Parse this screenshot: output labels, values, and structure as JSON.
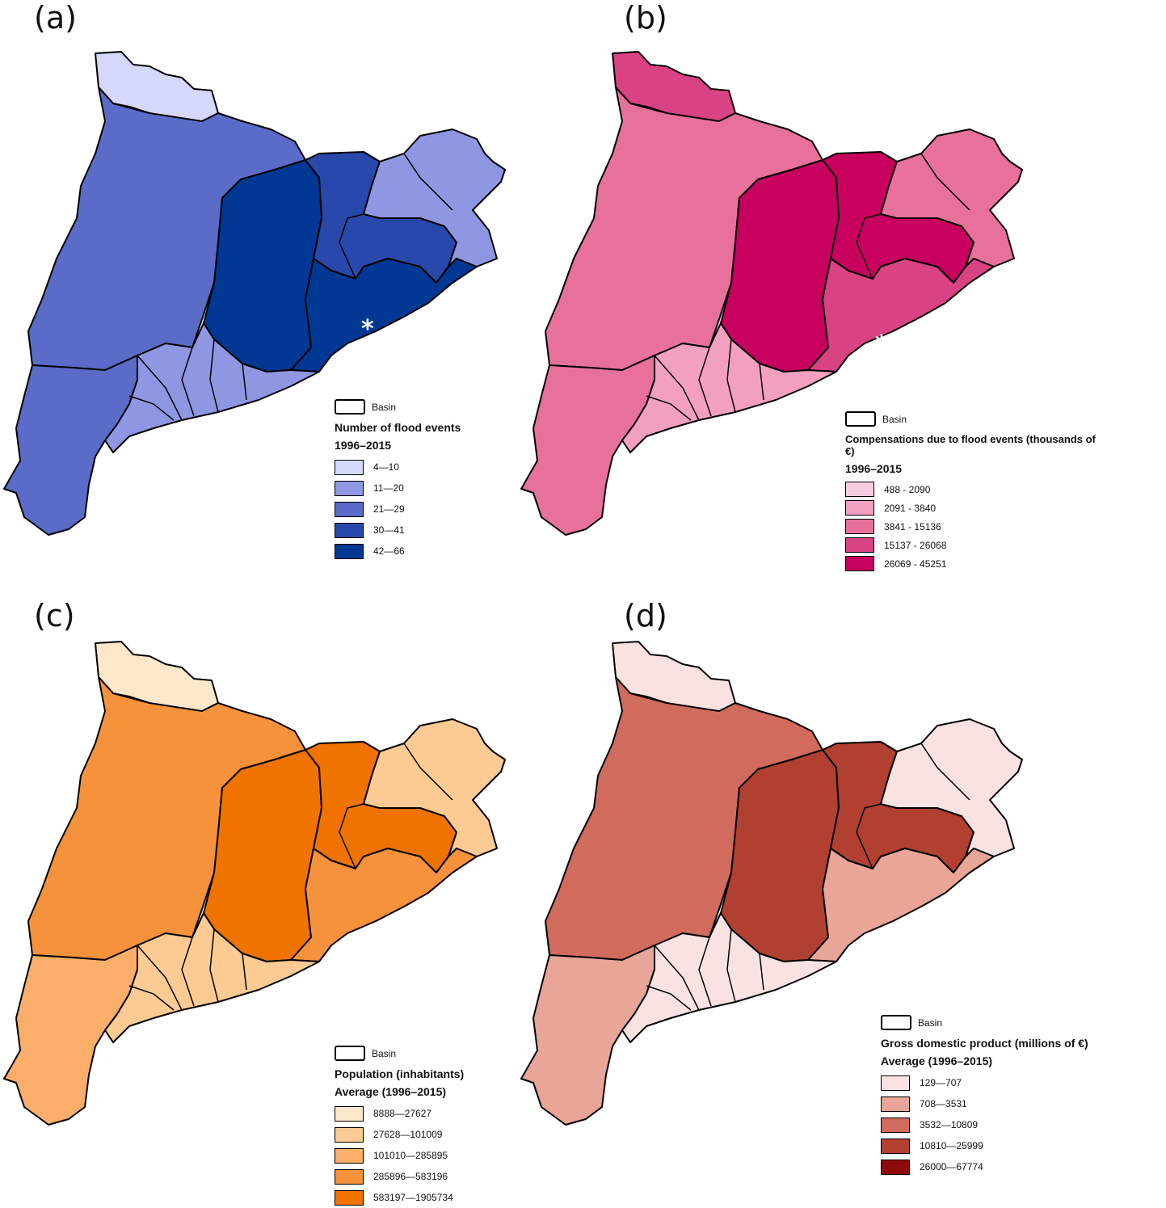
{
  "panels": [
    {
      "label": "(a)",
      "basin_label": "Basin",
      "title": "Number of flood events",
      "subtitle": "1996–2015",
      "classes": [
        {
          "label": "4—10",
          "color": "#d6d8fb"
        },
        {
          "label": "11—20",
          "color": "#8f97e3"
        },
        {
          "label": "21—29",
          "color": "#5a6cc8"
        },
        {
          "label": "30—41",
          "color": "#2848ab"
        },
        {
          "label": "42—66",
          "color": "#003893"
        }
      ],
      "regions": {
        "north": 0,
        "west": 2,
        "southwest": 2,
        "center": 4,
        "east": 3,
        "northeast": 1,
        "coast": 4,
        "south": 1
      }
    },
    {
      "label": "(b)",
      "basin_label": "Basin",
      "title": "Compensations due to flood events (thousands of €)",
      "subtitle": "1996–2015",
      "classes": [
        {
          "label": "488 - 2090",
          "color": "#f9cde0"
        },
        {
          "label": "2091 - 3840",
          "color": "#f3a0c0"
        },
        {
          "label": "3841 - 15136",
          "color": "#e8719c"
        },
        {
          "label": "15137 - 26068",
          "color": "#d94283"
        },
        {
          "label": "26069 - 45251",
          "color": "#c8005e"
        }
      ],
      "regions": {
        "north": 3,
        "west": 2,
        "southwest": 2,
        "center": 4,
        "east": 4,
        "northeast": 2,
        "coast": 3,
        "south": 1
      }
    },
    {
      "label": "(c)",
      "basin_label": "Basin",
      "title": "Population (inhabitants)",
      "subtitle": "Average (1996–2015)",
      "classes": [
        {
          "label": "8888—27627",
          "color": "#fde8cc"
        },
        {
          "label": "27628—101009",
          "color": "#fccb93"
        },
        {
          "label": "101010—285895",
          "color": "#fbae6a"
        },
        {
          "label": "285896—583196",
          "color": "#f7923c"
        },
        {
          "label": "583197—1905734",
          "color": "#f07300"
        }
      ],
      "regions": {
        "north": 0,
        "west": 3,
        "southwest": 2,
        "center": 4,
        "east": 4,
        "northeast": 1,
        "coast": 3,
        "south": 1
      }
    },
    {
      "label": "(d)",
      "basin_label": "Basin",
      "title": "Gross domestic product (millions of €)",
      "subtitle": "Average (1996–2015)",
      "classes": [
        {
          "label": "129—707",
          "color": "#fbe2e2"
        },
        {
          "label": "708—3531",
          "color": "#e8a598"
        },
        {
          "label": "3532—10809",
          "color": "#d06b5d"
        },
        {
          "label": "10810—25999",
          "color": "#b24030"
        },
        {
          "label": "26000—67774",
          "color": "#8c0a0a"
        }
      ],
      "regions": {
        "north": 0,
        "west": 2,
        "southwest": 1,
        "center": 3,
        "east": 3,
        "northeast": 0,
        "coast": 1,
        "south": 0
      }
    }
  ]
}
